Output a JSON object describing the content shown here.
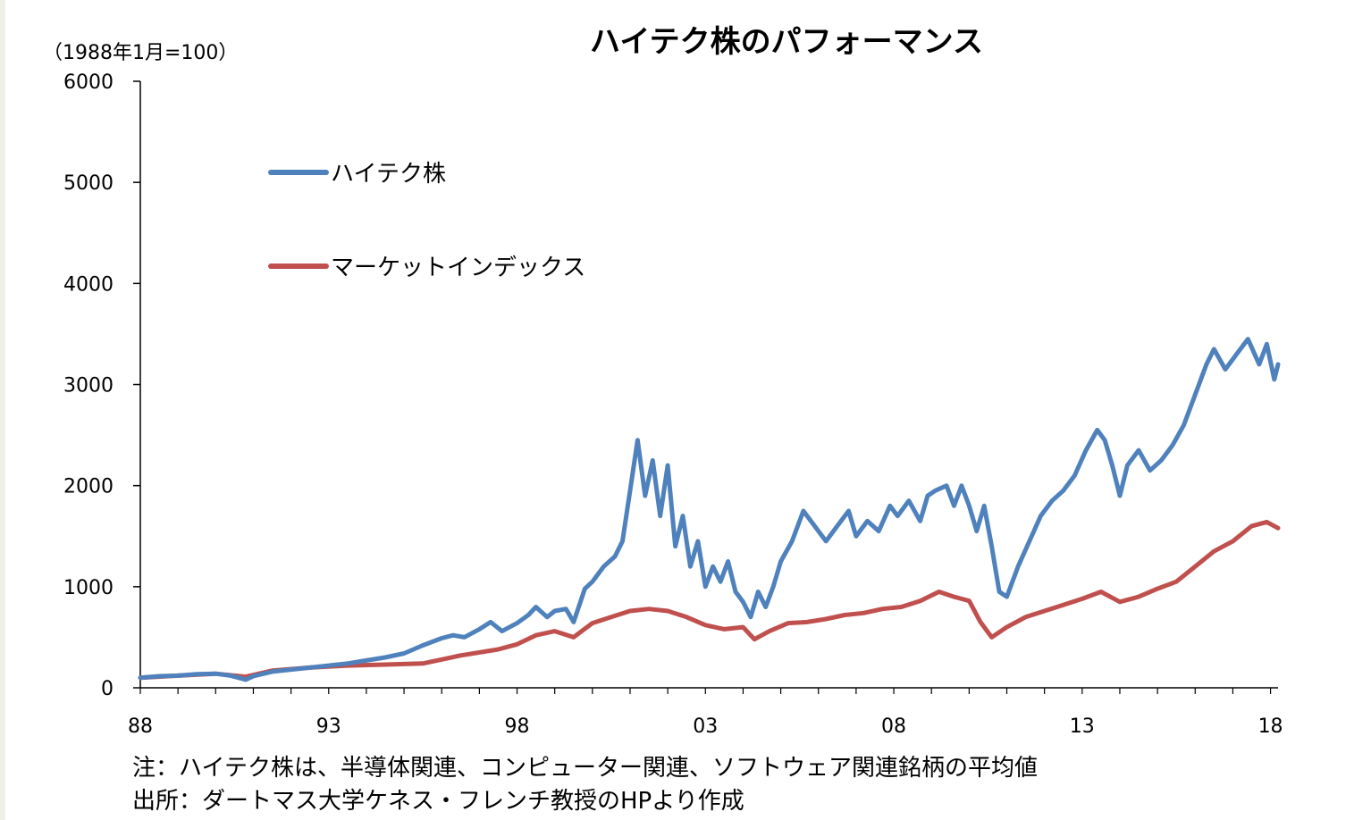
{
  "chart_data": {
    "type": "line",
    "title": "ハイテク株のパフォーマンス",
    "unit_note": "（1988年1月=100）",
    "xlabel": "",
    "ylabel": "",
    "xlim": [
      1988.0,
      2018.2
    ],
    "ylim": [
      0,
      6000
    ],
    "yticks": [
      "0",
      "1000",
      "2000",
      "3000",
      "4000",
      "5000",
      "6000"
    ],
    "yticks_values": [
      0,
      1000,
      2000,
      3000,
      4000,
      5000,
      6000
    ],
    "xticks": [
      "88",
      "93",
      "98",
      "03",
      "08",
      "13",
      "18"
    ],
    "xticks_values": [
      1988,
      1993,
      1998,
      2003,
      2008,
      2013,
      2018
    ],
    "grid": false,
    "legend_placement": "upper-left",
    "series": [
      {
        "name": "ハイテク株",
        "color": "#4f81bd",
        "points": [
          [
            1988.0,
            100
          ],
          [
            1988.5,
            115
          ],
          [
            1989.0,
            120
          ],
          [
            1989.5,
            135
          ],
          [
            1990.0,
            140
          ],
          [
            1990.4,
            120
          ],
          [
            1990.8,
            80
          ],
          [
            1991.0,
            115
          ],
          [
            1991.5,
            160
          ],
          [
            1992.0,
            180
          ],
          [
            1992.5,
            200
          ],
          [
            1993.0,
            220
          ],
          [
            1993.5,
            240
          ],
          [
            1994.0,
            270
          ],
          [
            1994.5,
            300
          ],
          [
            1995.0,
            340
          ],
          [
            1995.5,
            420
          ],
          [
            1996.0,
            490
          ],
          [
            1996.3,
            520
          ],
          [
            1996.6,
            500
          ],
          [
            1997.0,
            580
          ],
          [
            1997.3,
            650
          ],
          [
            1997.6,
            560
          ],
          [
            1998.0,
            640
          ],
          [
            1998.3,
            720
          ],
          [
            1998.5,
            800
          ],
          [
            1998.8,
            700
          ],
          [
            1999.0,
            760
          ],
          [
            1999.3,
            780
          ],
          [
            1999.5,
            650
          ],
          [
            1999.8,
            980
          ],
          [
            2000.0,
            1050
          ],
          [
            2000.3,
            1200
          ],
          [
            2000.6,
            1300
          ],
          [
            2000.8,
            1450
          ],
          [
            2001.0,
            1950
          ],
          [
            2001.2,
            2450
          ],
          [
            2001.4,
            1900
          ],
          [
            2001.6,
            2250
          ],
          [
            2001.8,
            1700
          ],
          [
            2002.0,
            2200
          ],
          [
            2002.2,
            1400
          ],
          [
            2002.4,
            1700
          ],
          [
            2002.6,
            1200
          ],
          [
            2002.8,
            1450
          ],
          [
            2003.0,
            1000
          ],
          [
            2003.2,
            1200
          ],
          [
            2003.4,
            1050
          ],
          [
            2003.6,
            1250
          ],
          [
            2003.8,
            950
          ],
          [
            2004.0,
            850
          ],
          [
            2004.2,
            700
          ],
          [
            2004.4,
            950
          ],
          [
            2004.6,
            800
          ],
          [
            2004.8,
            1000
          ],
          [
            2005.0,
            1250
          ],
          [
            2005.3,
            1450
          ],
          [
            2005.6,
            1750
          ],
          [
            2005.9,
            1600
          ],
          [
            2006.2,
            1450
          ],
          [
            2006.5,
            1600
          ],
          [
            2006.8,
            1750
          ],
          [
            2007.0,
            1500
          ],
          [
            2007.3,
            1650
          ],
          [
            2007.6,
            1550
          ],
          [
            2007.9,
            1800
          ],
          [
            2008.1,
            1700
          ],
          [
            2008.4,
            1850
          ],
          [
            2008.7,
            1650
          ],
          [
            2008.9,
            1900
          ],
          [
            2009.1,
            1950
          ],
          [
            2009.4,
            2000
          ],
          [
            2009.6,
            1800
          ],
          [
            2009.8,
            2000
          ],
          [
            2010.0,
            1800
          ],
          [
            2010.2,
            1550
          ],
          [
            2010.4,
            1800
          ],
          [
            2010.6,
            1400
          ],
          [
            2010.8,
            950
          ],
          [
            2011.0,
            900
          ],
          [
            2011.3,
            1200
          ],
          [
            2011.6,
            1450
          ],
          [
            2011.9,
            1700
          ],
          [
            2012.2,
            1850
          ],
          [
            2012.5,
            1950
          ],
          [
            2012.8,
            2100
          ],
          [
            2013.1,
            2350
          ],
          [
            2013.4,
            2550
          ],
          [
            2013.6,
            2450
          ],
          [
            2013.8,
            2200
          ],
          [
            2014.0,
            1900
          ],
          [
            2014.2,
            2200
          ],
          [
            2014.5,
            2350
          ],
          [
            2014.8,
            2150
          ],
          [
            2015.1,
            2250
          ],
          [
            2015.4,
            2400
          ],
          [
            2015.7,
            2600
          ],
          [
            2016.0,
            2900
          ],
          [
            2016.3,
            3200
          ],
          [
            2016.5,
            3350
          ],
          [
            2016.8,
            3150
          ],
          [
            2017.1,
            3300
          ],
          [
            2017.4,
            3450
          ],
          [
            2017.7,
            3200
          ],
          [
            2017.9,
            3400
          ],
          [
            2018.1,
            3050
          ],
          [
            2018.2,
            3200
          ]
        ]
      },
      {
        "name": "マーケットインデックス",
        "color": "#c0504d",
        "points": [
          [
            1988.0,
            100
          ],
          [
            1989.0,
            120
          ],
          [
            1990.0,
            140
          ],
          [
            1990.8,
            110
          ],
          [
            1991.5,
            170
          ],
          [
            1992.5,
            200
          ],
          [
            1993.5,
            220
          ],
          [
            1994.5,
            230
          ],
          [
            1995.5,
            240
          ],
          [
            1996.5,
            320
          ],
          [
            1997.5,
            380
          ],
          [
            1998.0,
            430
          ],
          [
            1998.5,
            520
          ],
          [
            1999.0,
            560
          ],
          [
            1999.5,
            500
          ],
          [
            2000.0,
            640
          ],
          [
            2000.5,
            700
          ],
          [
            2001.0,
            760
          ],
          [
            2001.5,
            780
          ],
          [
            2002.0,
            760
          ],
          [
            2002.5,
            700
          ],
          [
            2003.0,
            620
          ],
          [
            2003.5,
            580
          ],
          [
            2004.0,
            600
          ],
          [
            2004.3,
            480
          ],
          [
            2004.7,
            560
          ],
          [
            2005.2,
            640
          ],
          [
            2005.7,
            650
          ],
          [
            2006.2,
            680
          ],
          [
            2006.7,
            720
          ],
          [
            2007.2,
            740
          ],
          [
            2007.7,
            780
          ],
          [
            2008.2,
            800
          ],
          [
            2008.7,
            860
          ],
          [
            2009.2,
            950
          ],
          [
            2009.6,
            900
          ],
          [
            2010.0,
            860
          ],
          [
            2010.3,
            650
          ],
          [
            2010.6,
            500
          ],
          [
            2011.0,
            600
          ],
          [
            2011.5,
            700
          ],
          [
            2012.0,
            760
          ],
          [
            2012.5,
            820
          ],
          [
            2013.0,
            880
          ],
          [
            2013.5,
            950
          ],
          [
            2014.0,
            850
          ],
          [
            2014.5,
            900
          ],
          [
            2015.0,
            980
          ],
          [
            2015.5,
            1050
          ],
          [
            2016.0,
            1200
          ],
          [
            2016.5,
            1350
          ],
          [
            2017.0,
            1450
          ],
          [
            2017.5,
            1600
          ],
          [
            2017.9,
            1640
          ],
          [
            2018.2,
            1580
          ]
        ]
      }
    ]
  },
  "notes": [
    "注：ハイテク株は、半導体関連、コンピューター関連、ソフトウェア関連銘柄の平均値",
    "出所：ダートマス大学ケネス・フレンチ教授のHPより作成"
  ]
}
